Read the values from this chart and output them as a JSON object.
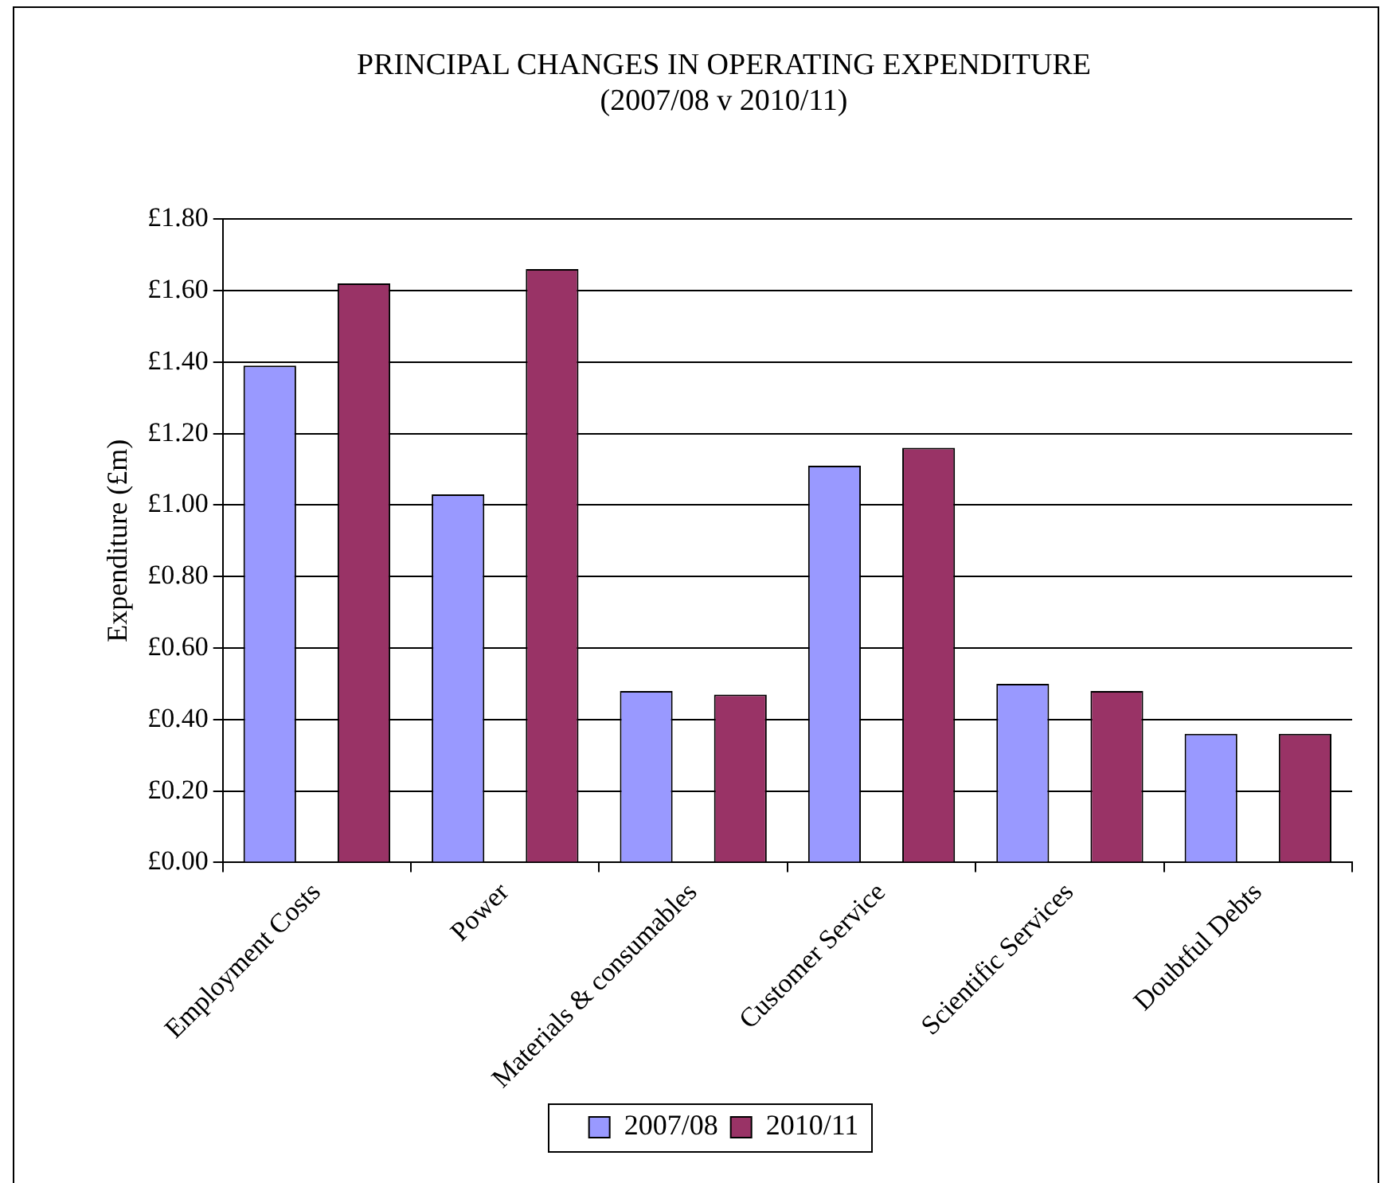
{
  "chart_data": {
    "type": "bar",
    "title": "PRINCIPAL CHANGES IN OPERATING EXPENDITURE",
    "subtitle": "(2007/08 v 2010/11)",
    "ylabel": "Expenditure (£m)",
    "categories": [
      "Employment Costs",
      "Power",
      "Materials & consumables",
      "Customer Service",
      "Scientific Services",
      "Doubtful Debts"
    ],
    "series": [
      {
        "name": "2007/08",
        "color": "#9999ff",
        "values": [
          1.39,
          1.03,
          0.48,
          1.11,
          0.5,
          0.36
        ]
      },
      {
        "name": "2010/11",
        "color": "#993366",
        "values": [
          1.62,
          1.66,
          0.47,
          1.16,
          0.48,
          0.36
        ]
      }
    ],
    "ylim": [
      0,
      1.8
    ],
    "yticks": [
      {
        "value": 0,
        "label": "£0.00"
      },
      {
        "value": 0.2,
        "label": "£0.20"
      },
      {
        "value": 0.4,
        "label": "£0.40"
      },
      {
        "value": 0.6,
        "label": "£0.60"
      },
      {
        "value": 0.8,
        "label": "£0.80"
      },
      {
        "value": 1.0,
        "label": "£1.00"
      },
      {
        "value": 1.2,
        "label": "£1.20"
      },
      {
        "value": 1.4,
        "label": "£1.40"
      },
      {
        "value": 1.6,
        "label": "£1.60"
      },
      {
        "value": 1.8,
        "label": "£1.80"
      }
    ],
    "grid": "y",
    "legend": "bottom"
  }
}
